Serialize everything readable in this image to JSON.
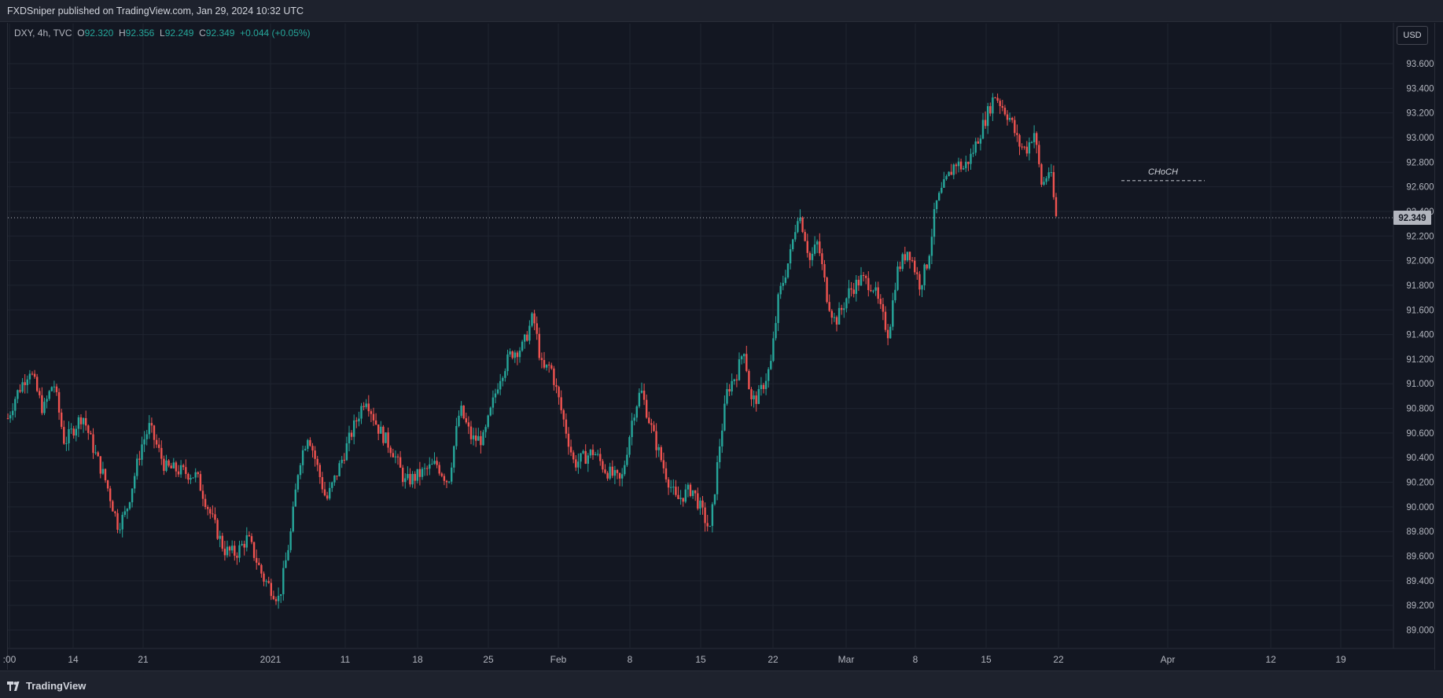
{
  "header": {
    "publish_text": "FXDSniper published on TradingView.com, Jan 29, 2024 10:32 UTC"
  },
  "legend": {
    "symbol": "DXY, 4h, TVC",
    "open_label": "O",
    "open": "92.320",
    "high_label": "H",
    "high": "92.356",
    "low_label": "L",
    "low": "92.249",
    "close_label": "C",
    "close": "92.349",
    "change": "+0.044 (+0.05%)"
  },
  "currency_button": "USD",
  "footer": {
    "brand": "TradingView"
  },
  "colors": {
    "background": "#131722",
    "up": "#26a69a",
    "down": "#ef5350",
    "grid": "#1f2430",
    "price_label_bg": "#b2b5be"
  },
  "chart_data": {
    "type": "candlestick",
    "symbol": "DXY",
    "interval": "4h",
    "source": "TVC",
    "y_ticks": [
      "93.600",
      "93.400",
      "93.200",
      "93.000",
      "92.800",
      "92.600",
      "92.400",
      "92.200",
      "92.000",
      "91.800",
      "91.600",
      "91.400",
      "91.200",
      "91.000",
      "90.800",
      "90.600",
      "90.400",
      "90.200",
      "90.000",
      "89.800",
      "89.600",
      "89.400",
      "89.200",
      "89.000"
    ],
    "ylim": [
      88.9,
      93.75
    ],
    "x_ticks": [
      ":00",
      "14",
      "21",
      "2021",
      "11",
      "18",
      "25",
      "Feb",
      "8",
      "15",
      "22",
      "Mar",
      "8",
      "15",
      "22",
      "Apr",
      "12",
      "19"
    ],
    "last_price": "92.349",
    "last_price_value": 92.349,
    "annotation": {
      "text": "CHoCH",
      "level": 92.65
    },
    "path": [
      [
        0,
        90.72
      ],
      [
        10,
        90.9
      ],
      [
        28,
        91.12
      ],
      [
        45,
        90.78
      ],
      [
        58,
        91.02
      ],
      [
        72,
        90.52
      ],
      [
        95,
        90.75
      ],
      [
        110,
        90.45
      ],
      [
        125,
        90.2
      ],
      [
        140,
        89.85
      ],
      [
        150,
        89.95
      ],
      [
        170,
        90.5
      ],
      [
        180,
        90.65
      ],
      [
        200,
        90.32
      ],
      [
        215,
        90.3
      ],
      [
        240,
        90.25
      ],
      [
        260,
        89.9
      ],
      [
        275,
        89.65
      ],
      [
        290,
        89.62
      ],
      [
        305,
        89.75
      ],
      [
        325,
        89.42
      ],
      [
        345,
        89.25
      ],
      [
        360,
        89.8
      ],
      [
        370,
        90.35
      ],
      [
        382,
        90.6
      ],
      [
        405,
        90.05
      ],
      [
        420,
        90.3
      ],
      [
        437,
        90.6
      ],
      [
        455,
        90.9
      ],
      [
        470,
        90.65
      ],
      [
        490,
        90.45
      ],
      [
        505,
        90.2
      ],
      [
        520,
        90.25
      ],
      [
        545,
        90.35
      ],
      [
        560,
        90.2
      ],
      [
        575,
        90.8
      ],
      [
        590,
        90.55
      ],
      [
        605,
        90.55
      ],
      [
        625,
        91.05
      ],
      [
        640,
        91.25
      ],
      [
        655,
        91.3
      ],
      [
        668,
        91.55
      ],
      [
        680,
        91.1
      ],
      [
        690,
        91.15
      ],
      [
        705,
        90.75
      ],
      [
        720,
        90.35
      ],
      [
        745,
        90.45
      ],
      [
        760,
        90.3
      ],
      [
        780,
        90.2
      ],
      [
        795,
        90.75
      ],
      [
        805,
        90.95
      ],
      [
        820,
        90.6
      ],
      [
        835,
        90.3
      ],
      [
        850,
        90.05
      ],
      [
        870,
        90.15
      ],
      [
        880,
        90.0
      ],
      [
        893,
        89.8
      ],
      [
        905,
        90.5
      ],
      [
        915,
        90.95
      ],
      [
        928,
        91.1
      ],
      [
        936,
        91.3
      ],
      [
        945,
        90.85
      ],
      [
        955,
        90.9
      ],
      [
        970,
        91.15
      ],
      [
        980,
        91.7
      ],
      [
        995,
        92.05
      ],
      [
        1005,
        92.4
      ],
      [
        1012,
        92.25
      ],
      [
        1020,
        92.0
      ],
      [
        1030,
        92.15
      ],
      [
        1042,
        91.7
      ],
      [
        1052,
        91.5
      ],
      [
        1060,
        91.6
      ],
      [
        1070,
        91.75
      ],
      [
        1085,
        91.85
      ],
      [
        1100,
        91.8
      ],
      [
        1112,
        91.55
      ],
      [
        1120,
        91.4
      ],
      [
        1130,
        91.9
      ],
      [
        1145,
        92.1
      ],
      [
        1160,
        91.8
      ],
      [
        1170,
        92.0
      ],
      [
        1180,
        92.45
      ],
      [
        1190,
        92.6
      ],
      [
        1205,
        92.8
      ],
      [
        1215,
        92.75
      ],
      [
        1225,
        92.85
      ],
      [
        1240,
        93.1
      ],
      [
        1255,
        93.35
      ],
      [
        1265,
        93.25
      ],
      [
        1275,
        93.15
      ],
      [
        1285,
        92.95
      ],
      [
        1295,
        92.9
      ],
      [
        1305,
        93.05
      ],
      [
        1315,
        92.6
      ],
      [
        1325,
        92.75
      ],
      [
        1333,
        92.35
      ]
    ]
  }
}
